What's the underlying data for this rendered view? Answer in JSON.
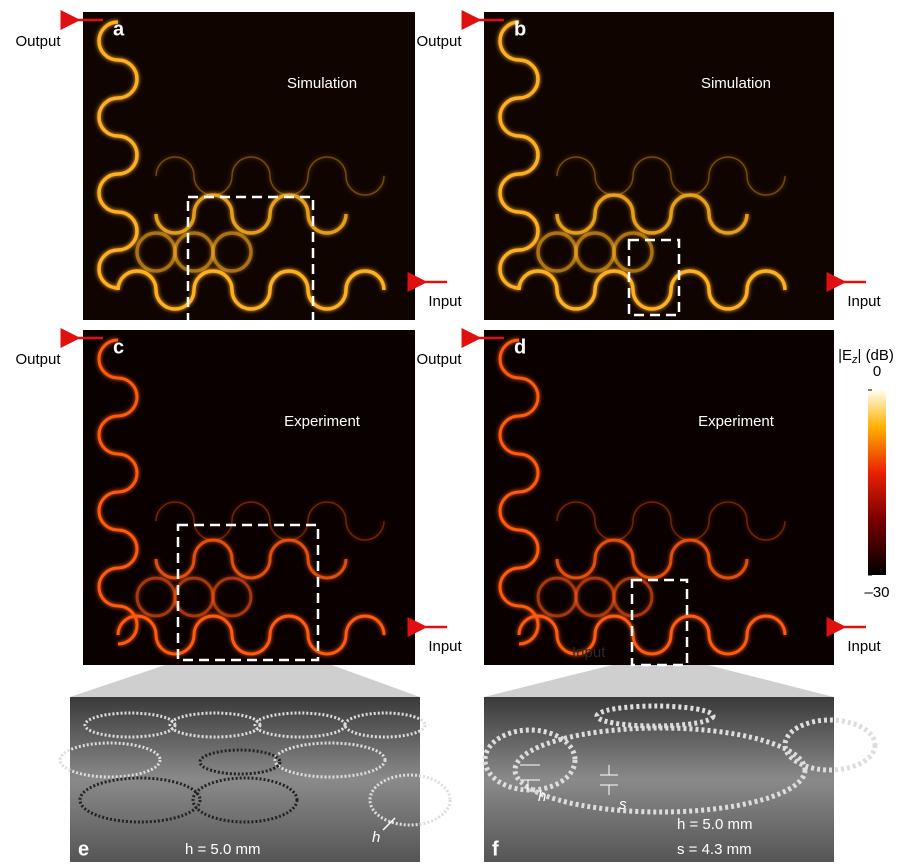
{
  "panels": [
    {
      "letter": "a",
      "mode": "Simulation",
      "output": "Output",
      "input": "Input"
    },
    {
      "letter": "b",
      "mode": "Simulation",
      "output": "Output",
      "input": "Input"
    },
    {
      "letter": "c",
      "mode": "Experiment",
      "output": "Output",
      "input": "Input"
    },
    {
      "letter": "d",
      "mode": "Experiment",
      "output": "Output",
      "input": "Input",
      "inner_label": "Input"
    }
  ],
  "colorbar": {
    "label_parts": [
      "|E",
      "z",
      "| (dB)"
    ],
    "ticks": [
      {
        "value": 0,
        "label": "0"
      },
      {
        "value": -30,
        "label": "–30"
      }
    ],
    "range": [
      -30,
      0
    ]
  },
  "panel_e": {
    "letter": "e",
    "h_label": "h",
    "caption": "h = 5.0 mm"
  },
  "panel_f": {
    "letter": "f",
    "h_label": "h",
    "s_label": "s",
    "caption_h": "h = 5.0 mm",
    "caption_s": "s = 4.3 mm"
  }
}
